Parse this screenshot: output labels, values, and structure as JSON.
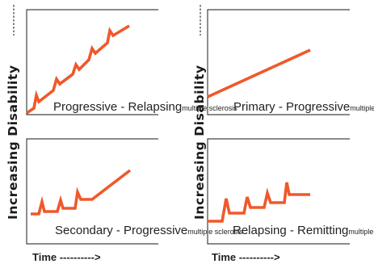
{
  "y_axis_label": "Increasing Disability",
  "time_label": "Time ---------->",
  "line_color": "#f0582a",
  "panels": [
    {
      "id": "progressive-relapsing",
      "title": "Progressive - Relapsing",
      "subtitle": "multiple sclerosis"
    },
    {
      "id": "primary-progressive",
      "title": "Primary - Progressive",
      "subtitle": "multiple sclerosis"
    },
    {
      "id": "secondary-progressive",
      "title": "Secondary - Progressive",
      "subtitle": "multiple sclerosis"
    },
    {
      "id": "relapsing-remitting",
      "title": "Relapsing - Remitting",
      "subtitle": "multiple sclerosis"
    }
  ]
}
